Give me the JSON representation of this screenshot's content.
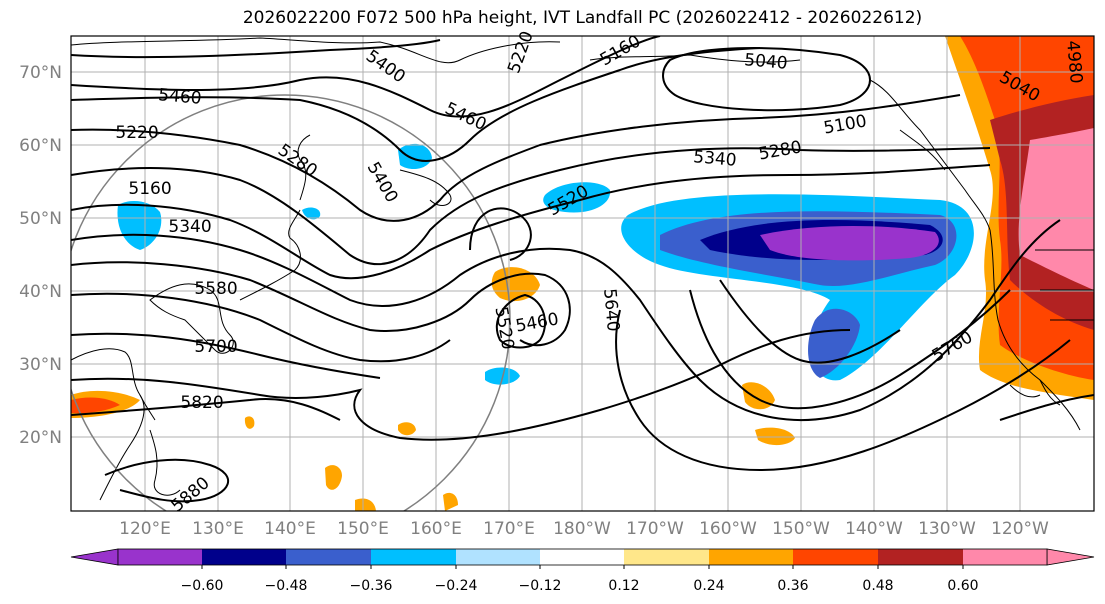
{
  "title": "2026022200 F072 500 hPa height, IVT Landfall PC (2026022412 - 2026022612)",
  "lat_labels": [
    "70°N",
    "60°N",
    "50°N",
    "40°N",
    "30°N",
    "20°N"
  ],
  "lon_labels": [
    "120°E",
    "130°E",
    "140°E",
    "150°E",
    "160°E",
    "170°E",
    "180°W",
    "170°W",
    "160°W",
    "150°W",
    "140°W",
    "130°W",
    "120°W"
  ],
  "contour_labels": [
    "5460",
    "5400",
    "5220",
    "5160",
    "5280",
    "5340",
    "5400",
    "5460",
    "5220",
    "5160",
    "5040",
    "5100",
    "5340",
    "5280",
    "4980",
    "5040",
    "5520",
    "5640",
    "5460",
    "5520",
    "5580",
    "5700",
    "5760",
    "5820",
    "5880"
  ],
  "colorbar": {
    "ticks": [
      "−0.60",
      "−0.48",
      "−0.36",
      "−0.24",
      "−0.12",
      "0.12",
      "0.24",
      "0.36",
      "0.48",
      "0.60"
    ],
    "colors": [
      "#9933cc",
      "#00008b",
      "#3a5fcd",
      "#00bfff",
      "#b0e2ff",
      "#ffffff",
      "#ffe78a",
      "#ffa500",
      "#ff4500",
      "#b22222",
      "#ff88aa"
    ]
  }
}
